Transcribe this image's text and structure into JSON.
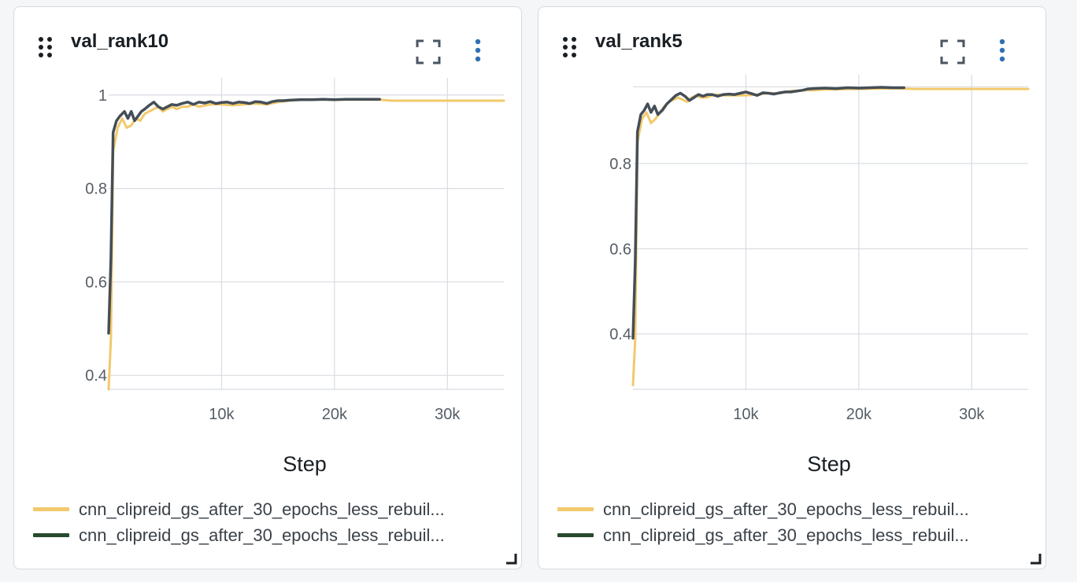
{
  "colors": {
    "series_1": "#f2c96b",
    "series_2": "#2a4a2e",
    "series_2_stroke": "#444e57",
    "grid": "#d8dce1",
    "menu_dots": "#2f6fb3"
  },
  "panels": [
    {
      "title": "val_rank10",
      "xlabel": "Step",
      "legend": [
        {
          "label": "cnn_clipreid_gs_after_30_epochs_less_rebuil..."
        },
        {
          "label": "cnn_clipreid_gs_after_30_epochs_less_rebuil..."
        }
      ]
    },
    {
      "title": "val_rank5",
      "xlabel": "Step",
      "legend": [
        {
          "label": "cnn_clipreid_gs_after_30_epochs_less_rebuil..."
        },
        {
          "label": "cnn_clipreid_gs_after_30_epochs_less_rebuil..."
        }
      ]
    }
  ],
  "chart_data": [
    {
      "type": "line",
      "title": "val_rank10",
      "xlabel": "Step",
      "ylabel": "",
      "xlim": [
        0,
        35000
      ],
      "ylim": [
        0.37,
        1.02
      ],
      "xticks": [
        10000,
        20000,
        30000
      ],
      "xtick_labels": [
        "10k",
        "20k",
        "30k"
      ],
      "yticks": [
        0.4,
        0.6,
        0.8,
        1
      ],
      "ytick_labels": [
        "0.4",
        "0.6",
        "0.8",
        "1"
      ],
      "grid": true,
      "legend_position": "bottom",
      "series": [
        {
          "x": [
            0,
            200,
            400,
            800,
            1200,
            1600,
            2000,
            2400,
            2800,
            3200,
            3600,
            4000,
            4400,
            4800,
            5200,
            5600,
            6000,
            6500,
            7000,
            7500,
            8000,
            9000,
            10000,
            11000,
            12000,
            13000,
            14000,
            15000,
            16000,
            17000,
            18000,
            19000,
            20000,
            22000,
            24000,
            25000,
            26000,
            28000,
            30000,
            32000,
            35000
          ],
          "y": [
            0.37,
            0.48,
            0.88,
            0.93,
            0.95,
            0.93,
            0.935,
            0.95,
            0.945,
            0.96,
            0.965,
            0.97,
            0.975,
            0.965,
            0.97,
            0.975,
            0.97,
            0.975,
            0.975,
            0.98,
            0.975,
            0.98,
            0.98,
            0.978,
            0.98,
            0.982,
            0.98,
            0.985,
            0.988,
            0.99,
            0.99,
            0.99,
            0.99,
            0.99,
            0.99,
            0.988,
            0.988,
            0.988,
            0.988,
            0.988,
            0.988
          ]
        },
        {
          "x": [
            0,
            200,
            400,
            700,
            1000,
            1400,
            1700,
            2000,
            2300,
            2600,
            2900,
            3200,
            3600,
            4000,
            4400,
            4800,
            5200,
            5600,
            6000,
            6500,
            7000,
            7500,
            8000,
            8500,
            9000,
            9500,
            10000,
            10500,
            11000,
            11500,
            12000,
            12500,
            13000,
            13500,
            14000,
            14500,
            15000,
            15500,
            16000,
            17000,
            18000,
            19000,
            20000,
            21000,
            22000,
            23000,
            24000
          ],
          "y": [
            0.49,
            0.65,
            0.92,
            0.945,
            0.955,
            0.965,
            0.95,
            0.965,
            0.945,
            0.955,
            0.965,
            0.97,
            0.978,
            0.985,
            0.975,
            0.97,
            0.975,
            0.98,
            0.978,
            0.982,
            0.985,
            0.98,
            0.985,
            0.983,
            0.986,
            0.982,
            0.984,
            0.985,
            0.982,
            0.985,
            0.984,
            0.982,
            0.986,
            0.985,
            0.982,
            0.986,
            0.988,
            0.988,
            0.989,
            0.99,
            0.99,
            0.991,
            0.99,
            0.991,
            0.991,
            0.991,
            0.991
          ]
        }
      ]
    },
    {
      "type": "line",
      "title": "val_rank5",
      "xlabel": "Step",
      "ylabel": "",
      "xlim": [
        0,
        35000
      ],
      "ylim": [
        0.27,
        0.99
      ],
      "xticks": [
        10000,
        20000,
        30000
      ],
      "xtick_labels": [
        "10k",
        "20k",
        "30k"
      ],
      "yticks": [
        0.4,
        0.6,
        0.8
      ],
      "ytick_labels": [
        "0.4",
        "0.6",
        "0.8"
      ],
      "grid": true,
      "legend_position": "bottom",
      "series": [
        {
          "x": [
            0,
            200,
            400,
            800,
            1200,
            1600,
            2000,
            2400,
            2800,
            3200,
            3600,
            4000,
            4400,
            4800,
            5200,
            5600,
            6000,
            6500,
            7000,
            7500,
            8000,
            9000,
            10000,
            11000,
            12000,
            13000,
            14000,
            15000,
            16000,
            17000,
            18000,
            19000,
            20000,
            22000,
            24000,
            25000,
            26000,
            28000,
            30000,
            32000,
            35000
          ],
          "y": [
            0.28,
            0.39,
            0.85,
            0.905,
            0.92,
            0.895,
            0.905,
            0.92,
            0.935,
            0.945,
            0.95,
            0.955,
            0.95,
            0.945,
            0.955,
            0.96,
            0.955,
            0.955,
            0.96,
            0.962,
            0.96,
            0.96,
            0.96,
            0.962,
            0.965,
            0.965,
            0.97,
            0.972,
            0.972,
            0.974,
            0.974,
            0.975,
            0.975,
            0.976,
            0.976,
            0.975,
            0.975,
            0.975,
            0.975,
            0.975,
            0.975
          ]
        },
        {
          "x": [
            0,
            200,
            400,
            700,
            1000,
            1300,
            1600,
            1900,
            2200,
            2600,
            3000,
            3400,
            3800,
            4200,
            4600,
            5000,
            5400,
            5800,
            6200,
            6600,
            7000,
            7500,
            8000,
            8500,
            9000,
            9500,
            10000,
            10500,
            11000,
            11500,
            12000,
            12500,
            13000,
            13500,
            14000,
            14500,
            15000,
            15500,
            16000,
            17000,
            18000,
            19000,
            20000,
            21000,
            22000,
            23000,
            24000
          ],
          "y": [
            0.39,
            0.57,
            0.875,
            0.915,
            0.925,
            0.94,
            0.92,
            0.935,
            0.915,
            0.925,
            0.94,
            0.95,
            0.96,
            0.965,
            0.958,
            0.948,
            0.955,
            0.962,
            0.958,
            0.962,
            0.962,
            0.958,
            0.962,
            0.963,
            0.962,
            0.965,
            0.968,
            0.964,
            0.96,
            0.966,
            0.965,
            0.963,
            0.966,
            0.968,
            0.968,
            0.97,
            0.972,
            0.975,
            0.976,
            0.977,
            0.976,
            0.978,
            0.977,
            0.978,
            0.979,
            0.978,
            0.978
          ]
        }
      ]
    }
  ]
}
